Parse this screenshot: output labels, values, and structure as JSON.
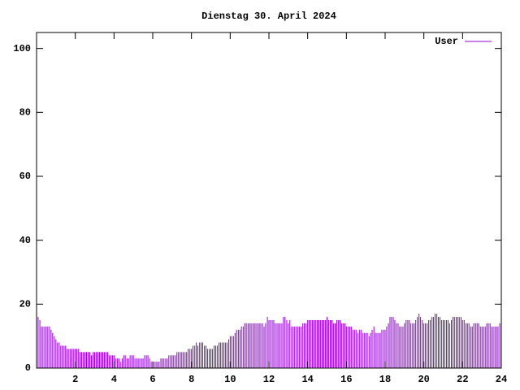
{
  "chart_data": {
    "type": "impulse",
    "title": "Dienstag 30. April 2024",
    "series": [
      {
        "name": "User",
        "color": "#9400d3",
        "x": [
          0,
          0.08,
          0.17,
          0.25,
          0.33,
          0.42,
          0.5,
          0.58,
          0.67,
          0.75,
          0.83,
          0.92,
          1,
          1.08,
          1.17,
          1.25,
          1.33,
          1.42,
          1.5,
          1.58,
          1.67,
          1.75,
          1.83,
          1.92,
          2,
          2.08,
          2.17,
          2.25,
          2.33,
          2.42,
          2.5,
          2.58,
          2.67,
          2.75,
          2.83,
          2.92,
          3,
          3.08,
          3.17,
          3.25,
          3.33,
          3.42,
          3.5,
          3.58,
          3.67,
          3.75,
          3.83,
          3.92,
          4,
          4.08,
          4.17,
          4.25,
          4.33,
          4.42,
          4.5,
          4.58,
          4.67,
          4.75,
          4.83,
          4.92,
          5,
          5.08,
          5.17,
          5.25,
          5.33,
          5.42,
          5.5,
          5.58,
          5.67,
          5.75,
          5.83,
          5.92,
          6,
          6.08,
          6.17,
          6.25,
          6.33,
          6.42,
          6.5,
          6.58,
          6.67,
          6.75,
          6.83,
          6.92,
          7,
          7.08,
          7.17,
          7.25,
          7.33,
          7.42,
          7.5,
          7.58,
          7.67,
          7.75,
          7.83,
          7.92,
          8,
          8.08,
          8.17,
          8.25,
          8.33,
          8.42,
          8.5,
          8.58,
          8.67,
          8.75,
          8.83,
          8.92,
          9,
          9.08,
          9.17,
          9.25,
          9.33,
          9.42,
          9.5,
          9.58,
          9.67,
          9.75,
          9.83,
          9.92,
          10,
          10.08,
          10.17,
          10.25,
          10.33,
          10.42,
          10.5,
          10.58,
          10.67,
          10.75,
          10.83,
          10.92,
          11,
          11.08,
          11.17,
          11.25,
          11.33,
          11.42,
          11.5,
          11.58,
          11.67,
          11.75,
          11.83,
          11.92,
          12,
          12.08,
          12.17,
          12.25,
          12.33,
          12.42,
          12.5,
          12.58,
          12.67,
          12.75,
          12.83,
          12.92,
          13,
          13.08,
          13.17,
          13.25,
          13.33,
          13.42,
          13.5,
          13.58,
          13.67,
          13.75,
          13.83,
          13.92,
          14,
          14.08,
          14.17,
          14.25,
          14.33,
          14.42,
          14.5,
          14.58,
          14.67,
          14.75,
          14.83,
          14.92,
          15,
          15.08,
          15.17,
          15.25,
          15.33,
          15.42,
          15.5,
          15.58,
          15.67,
          15.75,
          15.83,
          15.92,
          16,
          16.08,
          16.17,
          16.25,
          16.33,
          16.42,
          16.5,
          16.58,
          16.67,
          16.75,
          16.83,
          16.92,
          17,
          17.08,
          17.17,
          17.25,
          17.33,
          17.42,
          17.5,
          17.58,
          17.67,
          17.75,
          17.83,
          17.92,
          18,
          18.08,
          18.17,
          18.25,
          18.33,
          18.42,
          18.5,
          18.58,
          18.67,
          18.75,
          18.83,
          18.92,
          19,
          19.08,
          19.17,
          19.25,
          19.33,
          19.42,
          19.5,
          19.58,
          19.67,
          19.75,
          19.83,
          19.92,
          20,
          20.08,
          20.17,
          20.25,
          20.33,
          20.42,
          20.5,
          20.58,
          20.67,
          20.75,
          20.83,
          20.92,
          21,
          21.08,
          21.17,
          21.25,
          21.33,
          21.42,
          21.5,
          21.58,
          21.67,
          21.75,
          21.83,
          21.92,
          22,
          22.08,
          22.17,
          22.25,
          22.33,
          22.42,
          22.5,
          22.58,
          22.67,
          22.75,
          22.83,
          22.92,
          23,
          23.08,
          23.17,
          23.25,
          23.33,
          23.42,
          23.5,
          23.58,
          23.67,
          23.75,
          23.83,
          23.92
        ],
        "values": [
          16,
          16,
          15,
          13,
          13,
          13,
          13,
          13,
          13,
          12,
          11,
          10,
          9,
          8,
          8,
          7,
          7,
          7,
          7,
          6,
          6,
          6,
          6,
          6,
          6,
          6,
          6,
          5,
          5,
          5,
          5,
          5,
          5,
          5,
          4,
          5,
          5,
          5,
          5,
          5,
          5,
          5,
          5,
          5,
          5,
          4,
          4,
          4,
          4,
          3,
          3,
          3,
          2,
          3,
          4,
          4,
          3,
          3,
          4,
          4,
          4,
          3,
          3,
          3,
          3,
          3,
          3,
          4,
          4,
          4,
          3,
          2,
          2,
          2,
          2,
          2,
          2,
          3,
          3,
          3,
          3,
          3,
          4,
          4,
          4,
          4,
          4,
          5,
          5,
          5,
          5,
          5,
          5,
          5,
          6,
          6,
          6,
          7,
          7,
          8,
          7,
          8,
          8,
          8,
          7,
          7,
          6,
          6,
          6,
          6,
          7,
          7,
          7,
          8,
          8,
          8,
          8,
          8,
          8,
          9,
          10,
          10,
          10,
          11,
          12,
          12,
          12,
          13,
          13,
          14,
          14,
          14,
          14,
          14,
          14,
          14,
          14,
          14,
          14,
          14,
          14,
          13,
          14,
          16,
          15,
          15,
          15,
          15,
          14,
          14,
          14,
          14,
          14,
          16,
          16,
          15,
          14,
          15,
          13,
          13,
          13,
          13,
          13,
          13,
          13,
          14,
          14,
          14,
          15,
          15,
          15,
          15,
          15,
          15,
          15,
          15,
          15,
          15,
          15,
          15,
          16,
          15,
          15,
          15,
          14,
          14,
          15,
          15,
          15,
          14,
          14,
          14,
          13,
          13,
          13,
          13,
          12,
          12,
          12,
          11,
          12,
          12,
          11,
          11,
          11,
          11,
          10,
          11,
          12,
          13,
          11,
          11,
          11,
          11,
          12,
          12,
          12,
          13,
          14,
          16,
          16,
          16,
          15,
          14,
          14,
          13,
          13,
          13,
          14,
          15,
          15,
          15,
          14,
          14,
          14,
          15,
          16,
          17,
          16,
          15,
          14,
          14,
          14,
          15,
          15,
          16,
          16,
          17,
          17,
          16,
          16,
          15,
          15,
          15,
          15,
          15,
          14,
          15,
          16,
          16,
          16,
          16,
          16,
          16,
          15,
          15,
          14,
          14,
          14,
          13,
          13,
          14,
          14,
          14,
          14,
          13,
          13,
          13,
          13,
          14,
          14,
          14,
          13,
          13,
          13,
          13,
          13,
          14
        ]
      }
    ],
    "xlim": [
      0,
      24
    ],
    "xticks": [
      2,
      4,
      6,
      8,
      10,
      12,
      14,
      16,
      18,
      20,
      22,
      24
    ],
    "ylim": [
      0,
      105
    ],
    "yticks": [
      0,
      20,
      40,
      60,
      80,
      100
    ],
    "grid": false,
    "legend": "top-right"
  }
}
